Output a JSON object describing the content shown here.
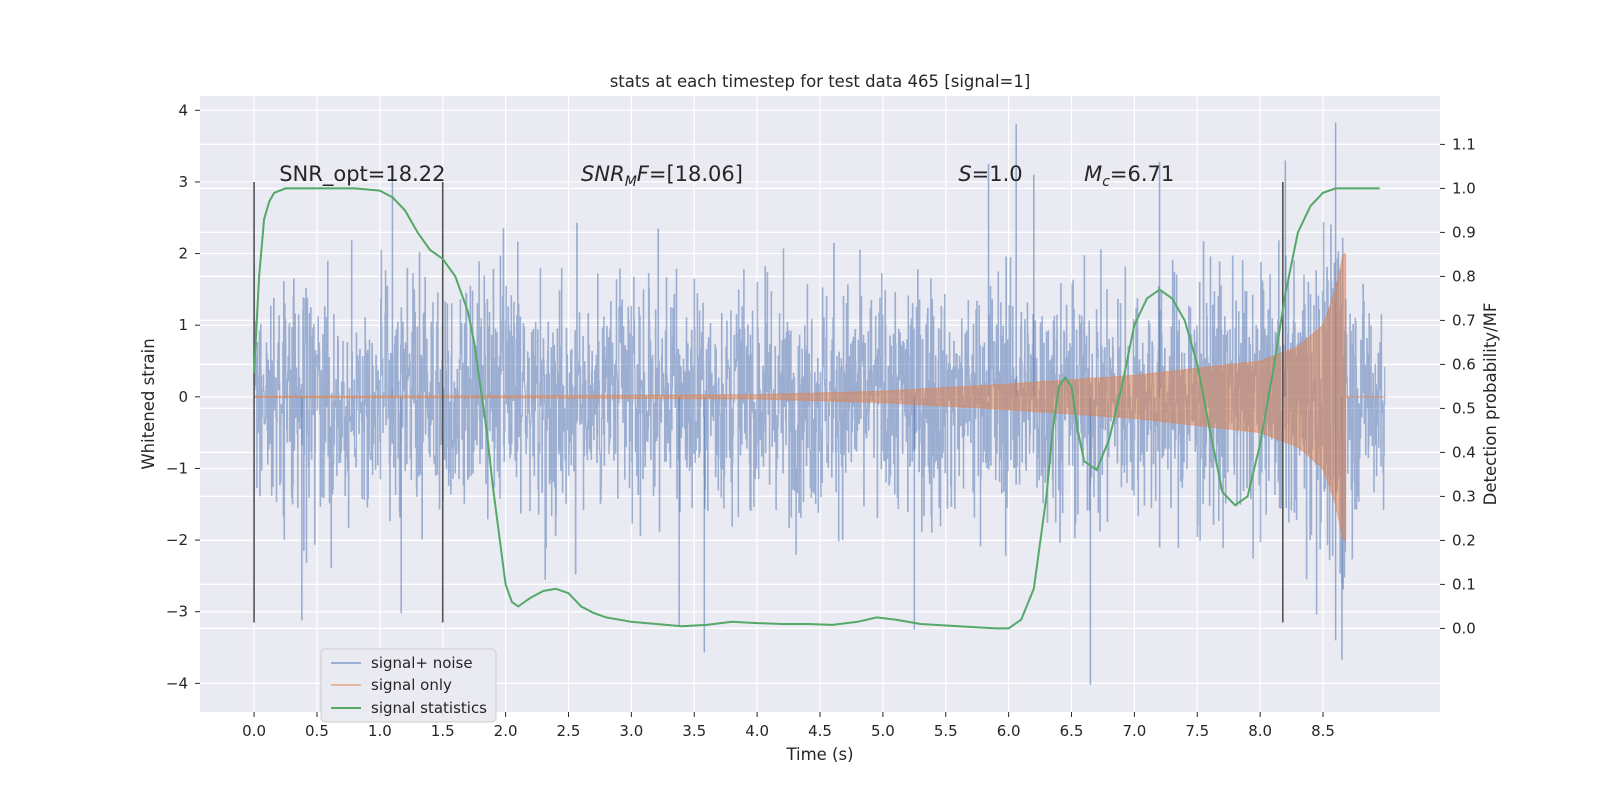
{
  "chart_data": {
    "type": "line",
    "title": "stats at each timestep for test data 465 [signal=1]",
    "xlabel": "Time (s)",
    "ylabel": "Whitened strain",
    "y2label": "Detection probability/MF",
    "xlim": [
      -0.43,
      9.43
    ],
    "ylim": [
      -4.4,
      4.2
    ],
    "y2lim": [
      -0.19,
      1.21
    ],
    "xticks": [
      0.0,
      0.5,
      1.0,
      1.5,
      2.0,
      2.5,
      3.0,
      3.5,
      4.0,
      4.5,
      5.0,
      5.5,
      6.0,
      6.5,
      7.0,
      7.5,
      8.0,
      8.5
    ],
    "xtick_labels": [
      "0.0",
      "0.5",
      "1.0",
      "1.5",
      "2.0",
      "2.5",
      "3.0",
      "3.5",
      "4.0",
      "4.5",
      "5.0",
      "5.5",
      "6.0",
      "6.5",
      "7.0",
      "7.5",
      "8.0",
      "8.5"
    ],
    "yticks": [
      -4,
      -3,
      -2,
      -1,
      0,
      1,
      2,
      3,
      4
    ],
    "ytick_labels": [
      "−4",
      "−3",
      "−2",
      "−1",
      "0",
      "1",
      "2",
      "3",
      "4"
    ],
    "y2ticks": [
      0.0,
      0.1,
      0.2,
      0.3,
      0.4,
      0.5,
      0.6,
      0.7,
      0.8,
      0.9,
      1.0,
      1.1
    ],
    "y2tick_labels": [
      "0.0",
      "0.1",
      "0.2",
      "0.3",
      "0.4",
      "0.5",
      "0.6",
      "0.7",
      "0.8",
      "0.9",
      "1.0",
      "1.1"
    ],
    "annotations": [
      {
        "text": "SNR_opt=18.22",
        "x": 0.2,
        "y": 3.0
      },
      {
        "text": "SNR_M F=[18.06]",
        "x": 2.6,
        "y": 3.0,
        "math": true,
        "base": "SNR",
        "sub": "M",
        "rest": "F=[18.06]"
      },
      {
        "text": "S=1.0",
        "x": 5.6,
        "y": 3.0,
        "math": true,
        "base": "S",
        "sub": "",
        "rest": "=1.0"
      },
      {
        "text": "M_c=6.71",
        "x": 6.6,
        "y": 3.0,
        "math": true,
        "base": "M",
        "sub": "c",
        "rest": "=6.71"
      }
    ],
    "vlines": [
      {
        "x": 0.0,
        "ymin": -3.15,
        "ymax": 3.0
      },
      {
        "x": 1.5,
        "ymin": -3.15,
        "ymax": 3.0
      },
      {
        "x": 8.18,
        "ymin": -3.15,
        "ymax": 3.0
      }
    ],
    "series": [
      {
        "name": "signal+ noise",
        "color": "#4c72b0",
        "kind": "noise",
        "x_range": [
          0.0,
          8.99
        ],
        "typical_band": [
          -1.75,
          1.75
        ],
        "extremes": [
          {
            "x": 0.38,
            "y": -3.12
          },
          {
            "x": 1.17,
            "y": -3.02
          },
          {
            "x": 3.38,
            "y": -3.2
          },
          {
            "x": 3.58,
            "y": -3.57
          },
          {
            "x": 5.25,
            "y": -3.25
          },
          {
            "x": 6.65,
            "y": -4.02
          },
          {
            "x": 8.6,
            "y": -3.4
          },
          {
            "x": 8.65,
            "y": -3.67
          },
          {
            "x": 6.06,
            "y": 3.81
          },
          {
            "x": 8.6,
            "y": 3.83
          },
          {
            "x": 6.2,
            "y": 3.1
          },
          {
            "x": 5.84,
            "y": 3.25
          },
          {
            "x": 7.2,
            "y": 3.28
          },
          {
            "x": 8.2,
            "y": 3.3
          },
          {
            "x": 1.1,
            "y": 3.05
          }
        ]
      },
      {
        "name": "signal only",
        "color": "#dd8452",
        "kind": "chirp",
        "t_merge": 8.68,
        "envelope": [
          {
            "x": 0.0,
            "y": 0.01
          },
          {
            "x": 2.0,
            "y": 0.015
          },
          {
            "x": 4.0,
            "y": 0.03
          },
          {
            "x": 5.0,
            "y": 0.08
          },
          {
            "x": 6.0,
            "y": 0.18
          },
          {
            "x": 7.0,
            "y": 0.3
          },
          {
            "x": 7.5,
            "y": 0.4
          },
          {
            "x": 8.0,
            "y": 0.5
          },
          {
            "x": 8.3,
            "y": 0.7
          },
          {
            "x": 8.5,
            "y": 1.0
          },
          {
            "x": 8.6,
            "y": 1.5
          },
          {
            "x": 8.66,
            "y": 2.0
          }
        ]
      },
      {
        "name": "signal statistics",
        "color": "#55a868",
        "kind": "line",
        "axis": "right",
        "x": [
          0.0,
          0.04,
          0.08,
          0.12,
          0.16,
          0.25,
          0.4,
          0.6,
          0.8,
          1.0,
          1.1,
          1.2,
          1.3,
          1.4,
          1.5,
          1.6,
          1.7,
          1.75,
          1.8,
          1.85,
          1.9,
          2.0,
          2.05,
          2.1,
          2.2,
          2.3,
          2.4,
          2.5,
          2.6,
          2.7,
          2.8,
          3.0,
          3.2,
          3.4,
          3.6,
          3.8,
          4.0,
          4.2,
          4.4,
          4.6,
          4.8,
          4.95,
          5.1,
          5.3,
          5.6,
          5.9,
          6.0,
          6.1,
          6.2,
          6.3,
          6.35,
          6.4,
          6.45,
          6.5,
          6.55,
          6.6,
          6.7,
          6.8,
          6.9,
          7.0,
          7.1,
          7.2,
          7.3,
          7.4,
          7.5,
          7.6,
          7.7,
          7.8,
          7.9,
          8.0,
          8.1,
          8.2,
          8.3,
          8.4,
          8.5,
          8.6,
          8.7,
          8.8,
          8.9,
          8.95
        ],
        "y": [
          0.58,
          0.8,
          0.93,
          0.97,
          0.99,
          1.0,
          1.0,
          1.0,
          1.0,
          0.995,
          0.98,
          0.95,
          0.9,
          0.86,
          0.84,
          0.8,
          0.72,
          0.65,
          0.55,
          0.45,
          0.32,
          0.1,
          0.06,
          0.05,
          0.07,
          0.085,
          0.09,
          0.08,
          0.05,
          0.035,
          0.025,
          0.015,
          0.01,
          0.005,
          0.008,
          0.015,
          0.012,
          0.01,
          0.01,
          0.008,
          0.015,
          0.025,
          0.02,
          0.01,
          0.005,
          0.0,
          0.0,
          0.02,
          0.09,
          0.3,
          0.45,
          0.55,
          0.57,
          0.55,
          0.45,
          0.38,
          0.36,
          0.43,
          0.55,
          0.69,
          0.75,
          0.77,
          0.75,
          0.7,
          0.6,
          0.45,
          0.31,
          0.28,
          0.3,
          0.42,
          0.58,
          0.76,
          0.9,
          0.96,
          0.99,
          1.0,
          1.0,
          1.0,
          1.0,
          1.0
        ]
      }
    ],
    "legend": {
      "position": "lower-left",
      "entries": [
        "signal+ noise",
        "signal only",
        "signal statistics"
      ]
    }
  }
}
